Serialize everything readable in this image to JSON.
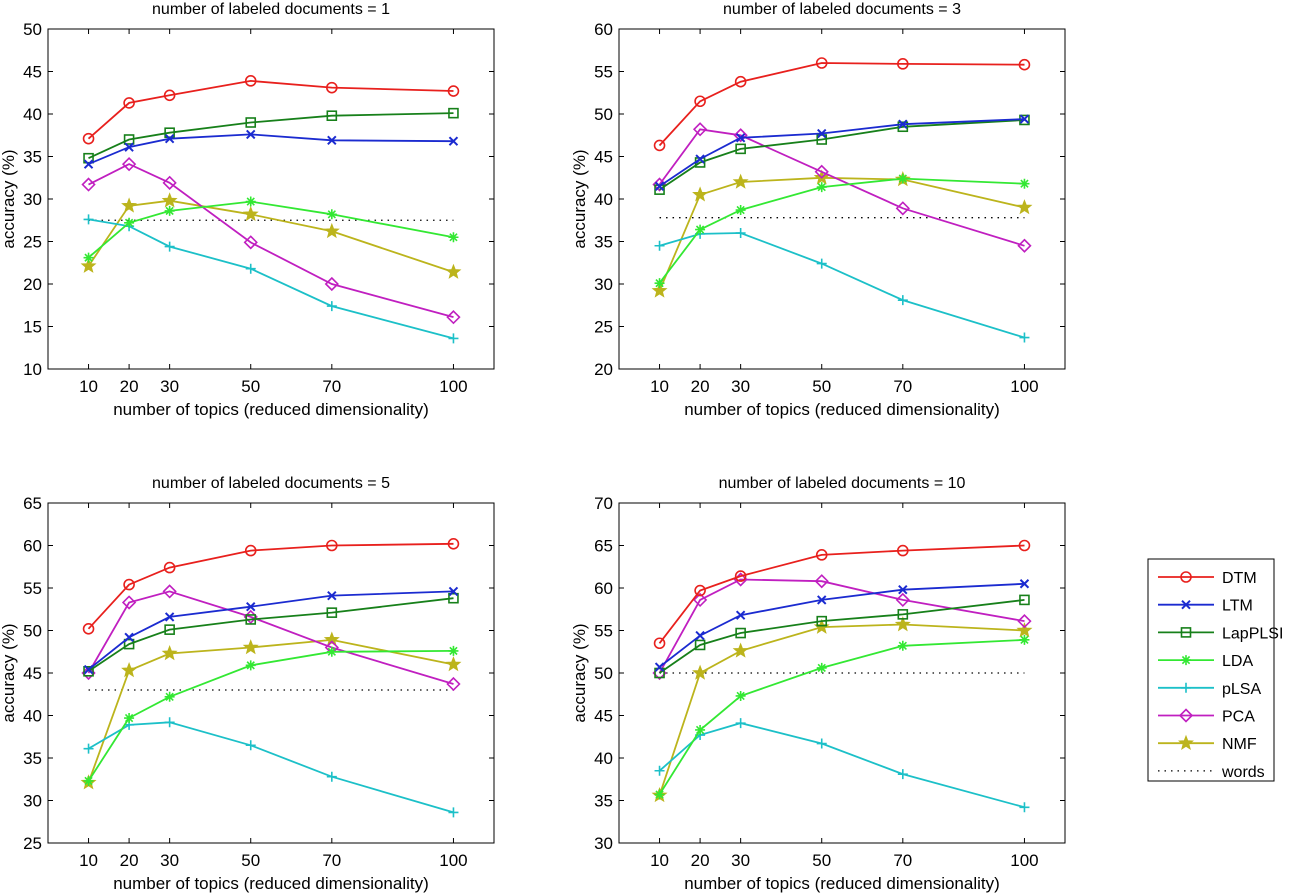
{
  "legend": {
    "entries": [
      {
        "name": "DTM",
        "color": "#e8201d",
        "marker": "circle",
        "line": "solid"
      },
      {
        "name": "LTM",
        "color": "#1b2bd0",
        "marker": "x",
        "line": "solid"
      },
      {
        "name": "LapPLSI",
        "color": "#17801a",
        "marker": "square",
        "line": "solid"
      },
      {
        "name": "LDA",
        "color": "#33e833",
        "marker": "asterisk",
        "line": "solid"
      },
      {
        "name": "pLSA",
        "color": "#1cc0c8",
        "marker": "plus",
        "line": "solid"
      },
      {
        "name": "PCA",
        "color": "#c01fc0",
        "marker": "diamond",
        "line": "solid"
      },
      {
        "name": "NMF",
        "color": "#bcb41c",
        "marker": "star",
        "line": "solid"
      },
      {
        "name": "words",
        "color": "#000000",
        "marker": "none",
        "line": "dotted"
      }
    ]
  },
  "chart_data": [
    {
      "type": "line",
      "title": "number of labeled documents = 1",
      "xlabel": "number of topics (reduced dimensionality)",
      "ylabel": "accuracy (%)",
      "x": [
        10,
        20,
        30,
        50,
        70,
        100
      ],
      "xticks": [
        10,
        20,
        30,
        50,
        70,
        100
      ],
      "xlim": [
        0,
        110
      ],
      "ylim": [
        10,
        50
      ],
      "yticks": [
        10,
        15,
        20,
        25,
        30,
        35,
        40,
        45,
        50
      ],
      "series": [
        {
          "name": "DTM",
          "values": [
            37.1,
            41.3,
            42.2,
            43.9,
            43.1,
            42.7
          ]
        },
        {
          "name": "LTM",
          "values": [
            34.1,
            36.1,
            37.1,
            37.6,
            36.9,
            36.8
          ]
        },
        {
          "name": "LapPLSI",
          "values": [
            34.8,
            37.0,
            37.8,
            39.0,
            39.8,
            40.1
          ]
        },
        {
          "name": "LDA",
          "values": [
            23.1,
            27.2,
            28.6,
            29.7,
            28.2,
            25.5
          ]
        },
        {
          "name": "pLSA",
          "values": [
            27.6,
            26.8,
            24.4,
            21.8,
            17.4,
            13.6
          ]
        },
        {
          "name": "PCA",
          "values": [
            31.7,
            34.1,
            31.9,
            24.9,
            20.0,
            16.1
          ]
        },
        {
          "name": "NMF",
          "values": [
            22.1,
            29.2,
            29.8,
            28.2,
            26.2,
            21.4
          ]
        },
        {
          "name": "words",
          "values": [
            27.5,
            27.5,
            27.5,
            27.5,
            27.5,
            27.5
          ]
        }
      ]
    },
    {
      "type": "line",
      "title": "number of labeled documents = 3",
      "xlabel": "number of topics (reduced dimensionality)",
      "ylabel": "accuracy (%)",
      "x": [
        10,
        20,
        30,
        50,
        70,
        100
      ],
      "xticks": [
        10,
        20,
        30,
        50,
        70,
        100
      ],
      "xlim": [
        0,
        110
      ],
      "ylim": [
        20,
        60
      ],
      "yticks": [
        20,
        25,
        30,
        35,
        40,
        45,
        50,
        55,
        60
      ],
      "series": [
        {
          "name": "DTM",
          "values": [
            46.3,
            51.5,
            53.8,
            56.0,
            55.9,
            55.8
          ]
        },
        {
          "name": "LTM",
          "values": [
            41.5,
            44.7,
            47.2,
            47.7,
            48.8,
            49.4
          ]
        },
        {
          "name": "LapPLSI",
          "values": [
            41.1,
            44.3,
            45.9,
            47.0,
            48.5,
            49.3
          ]
        },
        {
          "name": "LDA",
          "values": [
            30.1,
            36.4,
            38.7,
            41.4,
            42.4,
            41.8
          ]
        },
        {
          "name": "pLSA",
          "values": [
            34.5,
            35.9,
            36.0,
            32.4,
            28.1,
            23.7
          ]
        },
        {
          "name": "PCA",
          "values": [
            41.7,
            48.2,
            47.5,
            43.2,
            38.9,
            34.5
          ]
        },
        {
          "name": "NMF",
          "values": [
            29.2,
            40.5,
            42.0,
            42.5,
            42.3,
            39.0
          ]
        },
        {
          "name": "words",
          "values": [
            37.8,
            37.8,
            37.8,
            37.8,
            37.8,
            37.8
          ]
        }
      ]
    },
    {
      "type": "line",
      "title": "number of labeled documents = 5",
      "xlabel": "number of topics (reduced dimensionality)",
      "ylabel": "accuracy (%)",
      "x": [
        10,
        20,
        30,
        50,
        70,
        100
      ],
      "xticks": [
        10,
        20,
        30,
        50,
        70,
        100
      ],
      "xlim": [
        0,
        110
      ],
      "ylim": [
        25,
        65
      ],
      "yticks": [
        25,
        30,
        35,
        40,
        45,
        50,
        55,
        60,
        65
      ],
      "series": [
        {
          "name": "DTM",
          "values": [
            50.2,
            55.4,
            57.4,
            59.4,
            60.0,
            60.2
          ]
        },
        {
          "name": "LTM",
          "values": [
            45.4,
            49.2,
            51.6,
            52.8,
            54.1,
            54.6
          ]
        },
        {
          "name": "LapPLSI",
          "values": [
            45.2,
            48.4,
            50.1,
            51.3,
            52.1,
            53.8
          ]
        },
        {
          "name": "LDA",
          "values": [
            32.3,
            39.7,
            42.2,
            45.9,
            47.5,
            47.6
          ]
        },
        {
          "name": "pLSA",
          "values": [
            36.1,
            38.9,
            39.2,
            36.5,
            32.8,
            28.6
          ]
        },
        {
          "name": "PCA",
          "values": [
            45.0,
            53.3,
            54.6,
            51.6,
            48.0,
            43.7
          ]
        },
        {
          "name": "NMF",
          "values": [
            32.1,
            45.3,
            47.3,
            48.0,
            48.9,
            46.0
          ]
        },
        {
          "name": "words",
          "values": [
            43.0,
            43.0,
            43.0,
            43.0,
            43.0,
            43.0
          ]
        }
      ]
    },
    {
      "type": "line",
      "title": "number of labeled documents = 10",
      "xlabel": "number of topics (reduced dimensionality)",
      "ylabel": "accuracy (%)",
      "x": [
        10,
        20,
        30,
        50,
        70,
        100
      ],
      "xticks": [
        10,
        20,
        30,
        50,
        70,
        100
      ],
      "xlim": [
        0,
        110
      ],
      "ylim": [
        30,
        70
      ],
      "yticks": [
        30,
        35,
        40,
        45,
        50,
        55,
        60,
        65,
        70
      ],
      "series": [
        {
          "name": "DTM",
          "values": [
            53.5,
            59.7,
            61.4,
            63.9,
            64.4,
            65.0
          ]
        },
        {
          "name": "LTM",
          "values": [
            50.7,
            54.4,
            56.8,
            58.6,
            59.8,
            60.5
          ]
        },
        {
          "name": "LapPLSI",
          "values": [
            50.0,
            53.3,
            54.7,
            56.1,
            56.9,
            58.6
          ]
        },
        {
          "name": "LDA",
          "values": [
            35.7,
            43.3,
            47.3,
            50.6,
            53.2,
            53.9
          ]
        },
        {
          "name": "pLSA",
          "values": [
            38.5,
            42.7,
            44.1,
            41.7,
            38.1,
            34.2
          ]
        },
        {
          "name": "PCA",
          "values": [
            50.0,
            58.6,
            61.0,
            60.8,
            58.6,
            56.1
          ]
        },
        {
          "name": "NMF",
          "values": [
            35.6,
            50.0,
            52.6,
            55.4,
            55.7,
            55.0
          ]
        },
        {
          "name": "words",
          "values": [
            50.0,
            50.0,
            50.0,
            50.0,
            50.0,
            50.0
          ]
        }
      ]
    }
  ]
}
